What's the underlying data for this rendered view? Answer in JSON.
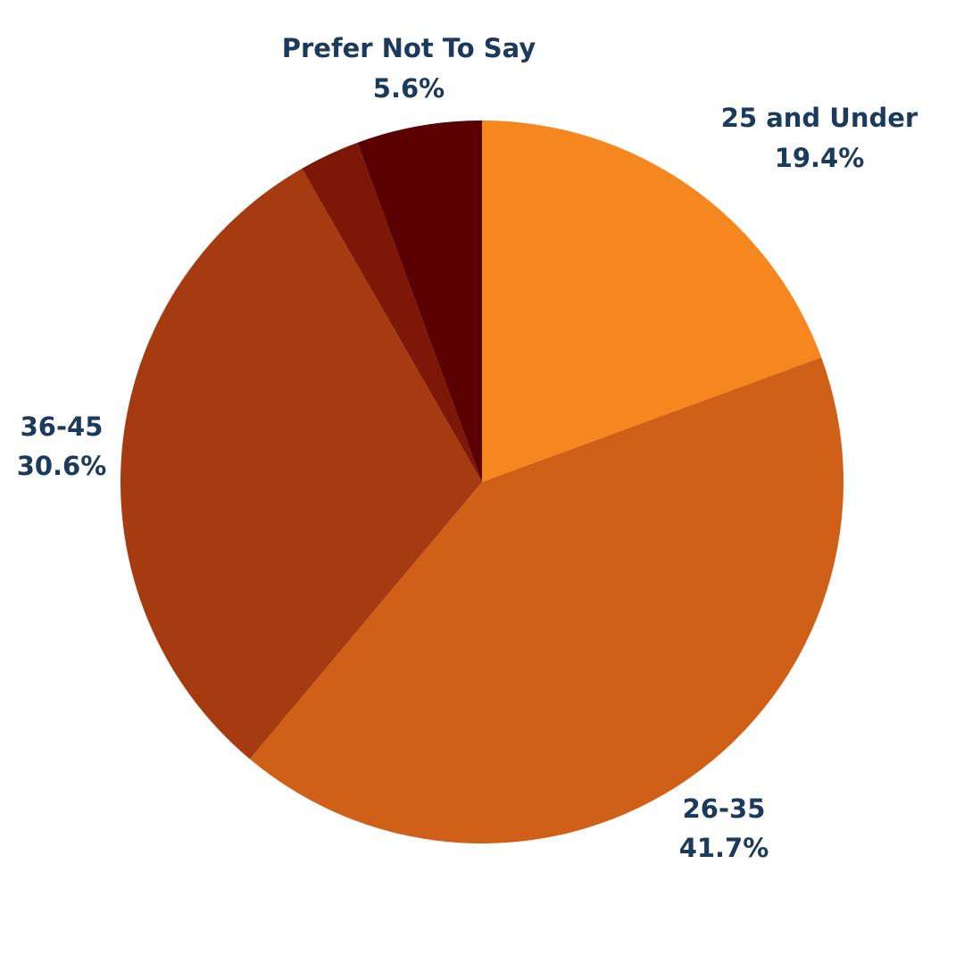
{
  "chart_data": {
    "type": "pie",
    "slices": [
      {
        "label": "25 and Under",
        "value": 19.4,
        "value_label": "19.4%",
        "color": "#f5871e"
      },
      {
        "label": "26-35",
        "value": 41.7,
        "value_label": "41.7%",
        "color": "#d05f18"
      },
      {
        "label": "36-45",
        "value": 30.6,
        "value_label": "30.6%",
        "color": "#a63a10"
      },
      {
        "label": "",
        "value": 2.7,
        "value_label": "",
        "color": "#7d1707"
      },
      {
        "label": "Prefer Not To Say",
        "value": 5.6,
        "value_label": "5.6%",
        "color": "#5a0000"
      }
    ],
    "start_angle": "12 o'clock",
    "direction": "clockwise",
    "label_color": "#1b3a5c",
    "legend": "none"
  }
}
